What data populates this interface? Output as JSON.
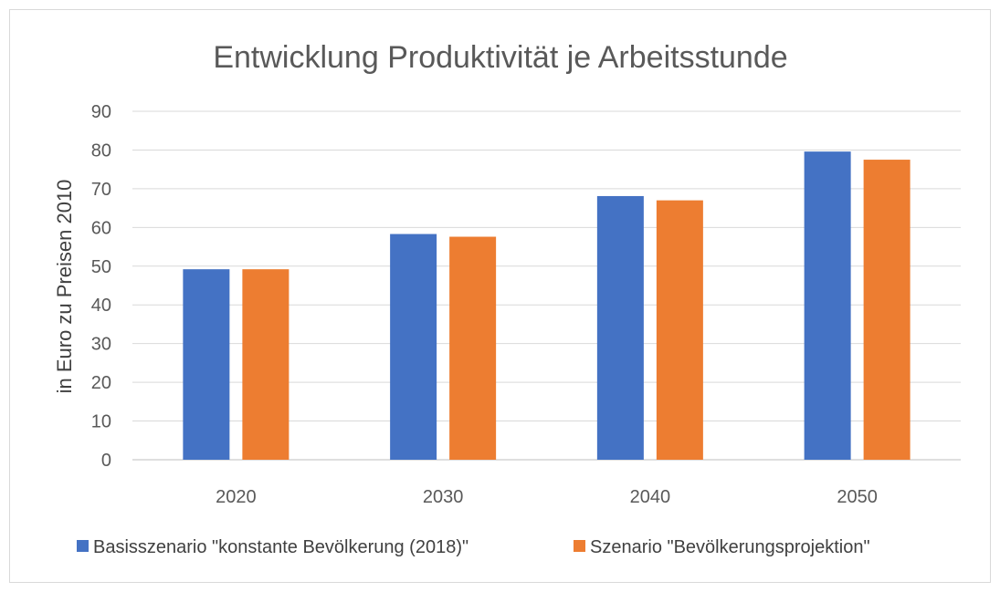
{
  "chart_data": {
    "type": "bar",
    "title": "Entwicklung Produktivität je Arbeitsstunde",
    "xlabel": "",
    "ylabel": "in Euro zu Preisen 2010",
    "categories": [
      "2020",
      "2030",
      "2040",
      "2050"
    ],
    "series": [
      {
        "name": "Basisszenario \"konstante Bevölkerung (2018)\"",
        "color": "#4472C4",
        "values": [
          49.2,
          58.3,
          68.1,
          79.6
        ]
      },
      {
        "name": "Szenario \"Bevölkerungsprojektion\"",
        "color": "#ED7D31",
        "values": [
          49.2,
          57.6,
          67.0,
          77.5
        ]
      }
    ],
    "ylim": [
      0,
      90
    ],
    "yticks": [
      0,
      10,
      20,
      30,
      40,
      50,
      60,
      70,
      80,
      90
    ],
    "grid": true,
    "legend_position": "bottom"
  }
}
